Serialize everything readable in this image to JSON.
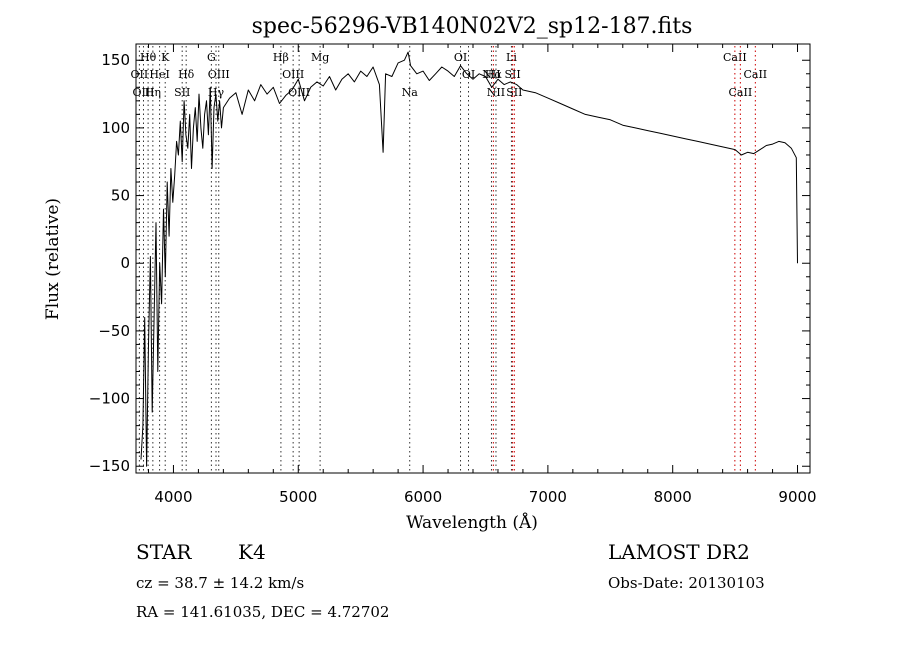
{
  "chart_data": {
    "type": "line",
    "title": "spec-56296-VB140N02V2_sp12-187.fits",
    "xlabel": "Wavelength (Å)",
    "ylabel": "Flux (relative)",
    "xlim": [
      3700,
      9100
    ],
    "ylim": [
      -155,
      162
    ],
    "xticks": [
      4000,
      5000,
      6000,
      7000,
      8000,
      9000
    ],
    "xtick_labels": [
      "4000",
      "5000",
      "6000",
      "7000",
      "8000",
      "9000"
    ],
    "yticks": [
      -150,
      -100,
      -50,
      0,
      50,
      100,
      150
    ],
    "ytick_labels": [
      "−150",
      "−100",
      "−50",
      "0",
      "50",
      "100",
      "150"
    ],
    "grid": false,
    "series": [
      {
        "name": "flux",
        "x": [
          3740,
          3755,
          3770,
          3785,
          3800,
          3815,
          3830,
          3845,
          3860,
          3875,
          3890,
          3905,
          3920,
          3935,
          3950,
          3965,
          3980,
          3995,
          4010,
          4025,
          4040,
          4055,
          4070,
          4085,
          4100,
          4115,
          4130,
          4145,
          4160,
          4175,
          4190,
          4205,
          4220,
          4235,
          4250,
          4265,
          4280,
          4295,
          4310,
          4325,
          4340,
          4355,
          4370,
          4385,
          4400,
          4450,
          4500,
          4550,
          4600,
          4650,
          4700,
          4750,
          4800,
          4850,
          4900,
          4950,
          5000,
          5050,
          5100,
          5150,
          5200,
          5250,
          5300,
          5350,
          5400,
          5450,
          5500,
          5550,
          5600,
          5650,
          5680,
          5700,
          5750,
          5800,
          5850,
          5880,
          5900,
          5950,
          6000,
          6050,
          6100,
          6150,
          6200,
          6250,
          6300,
          6350,
          6400,
          6450,
          6500,
          6550,
          6600,
          6650,
          6700,
          6750,
          6800,
          6900,
          7000,
          7100,
          7200,
          7300,
          7400,
          7500,
          7600,
          7700,
          7800,
          7900,
          8000,
          8100,
          8200,
          8300,
          8400,
          8500,
          8550,
          8600,
          8650,
          8700,
          8750,
          8800,
          8850,
          8900,
          8950,
          8990,
          9000
        ],
        "values": [
          -145,
          -120,
          -40,
          -150,
          -60,
          5,
          -110,
          -40,
          30,
          -80,
          0,
          -30,
          40,
          -10,
          60,
          20,
          70,
          45,
          65,
          90,
          80,
          105,
          75,
          120,
          95,
          85,
          110,
          70,
          100,
          115,
          90,
          125,
          100,
          85,
          110,
          120,
          95,
          130,
          70,
          115,
          125,
          105,
          120,
          100,
          115,
          122,
          126,
          110,
          128,
          120,
          132,
          125,
          130,
          118,
          124,
          128,
          136,
          120,
          130,
          134,
          131,
          138,
          128,
          136,
          140,
          134,
          142,
          138,
          145,
          132,
          82,
          140,
          138,
          148,
          150,
          156,
          146,
          140,
          142,
          135,
          140,
          145,
          142,
          138,
          146,
          140,
          136,
          140,
          138,
          130,
          136,
          132,
          134,
          132,
          128,
          126,
          122,
          118,
          114,
          110,
          108,
          106,
          102,
          100,
          98,
          96,
          94,
          92,
          90,
          88,
          86,
          84,
          80,
          82,
          81,
          84,
          87,
          88,
          90,
          89,
          85,
          78,
          0
        ]
      }
    ],
    "line_markers": [
      {
        "label": "Hθ",
        "x": 3797,
        "row": 1,
        "color": "#333333"
      },
      {
        "label": "K",
        "x": 3934,
        "row": 1,
        "color": "#333333"
      },
      {
        "label": "OII",
        "x": 3727,
        "row": 2,
        "color": "#333333"
      },
      {
        "label": "HeI",
        "x": 3889,
        "row": 2,
        "color": "#333333"
      },
      {
        "label": "Hδ",
        "x": 4102,
        "row": 2,
        "color": "#333333"
      },
      {
        "label": "OIII",
        "x": 3760,
        "row": 3,
        "color": "#333333"
      },
      {
        "label": "Hη",
        "x": 3835,
        "row": 3,
        "color": "#333333"
      },
      {
        "label": "SII",
        "x": 4070,
        "row": 3,
        "color": "#333333"
      },
      {
        "label": "G",
        "x": 4304,
        "row": 1,
        "color": "#333333"
      },
      {
        "label": "OIII",
        "x": 4363,
        "row": 2,
        "color": "#333333"
      },
      {
        "label": "Hγ",
        "x": 4341,
        "row": 3,
        "color": "#333333"
      },
      {
        "label": "Hβ",
        "x": 4861,
        "row": 1,
        "color": "#333333"
      },
      {
        "label": "OIII",
        "x": 4959,
        "row": 2,
        "color": "#333333"
      },
      {
        "label": "OIII",
        "x": 5007,
        "row": 3,
        "color": "#333333"
      },
      {
        "label": "Mg",
        "x": 5175,
        "row": 1,
        "color": "#333333"
      },
      {
        "label": "Na",
        "x": 5893,
        "row": 3,
        "color": "#333333"
      },
      {
        "label": "OI",
        "x": 6300,
        "row": 1,
        "color": "#333333"
      },
      {
        "label": "OI",
        "x": 6364,
        "row": 2,
        "color": "#333333"
      },
      {
        "label": "NII",
        "x": 6548,
        "row": 2,
        "color": "#333333"
      },
      {
        "label": "Hα",
        "x": 6563,
        "row": 2,
        "color": "#cc0000"
      },
      {
        "label": "NII",
        "x": 6584,
        "row": 3,
        "color": "#333333"
      },
      {
        "label": "Li",
        "x": 6708,
        "row": 1,
        "color": "#333333"
      },
      {
        "label": "SII",
        "x": 6717,
        "row": 2,
        "color": "#cc0000"
      },
      {
        "label": "SII",
        "x": 6731,
        "row": 3,
        "color": "#cc0000"
      },
      {
        "label": "CaII",
        "x": 8498,
        "row": 1,
        "color": "#cc0000"
      },
      {
        "label": "CaII",
        "x": 8662,
        "row": 2,
        "color": "#cc0000"
      },
      {
        "label": "CaII",
        "x": 8542,
        "row": 3,
        "color": "#cc0000"
      }
    ]
  },
  "info": {
    "class_label": "STAR",
    "subclass_label": "K4",
    "survey_label": "LAMOST DR2",
    "cz_text": "cz = 38.7 ± 14.2 km/s",
    "obs_date_text": "Obs-Date: 20130103",
    "coords_text": "RA = 141.61035, DEC =    4.72702"
  }
}
